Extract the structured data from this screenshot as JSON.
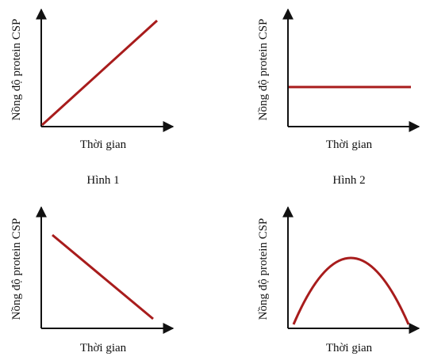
{
  "panels": [
    {
      "y_label": "Nồng độ protein CSP",
      "x_label": "Thời gian",
      "caption": "Hình 1"
    },
    {
      "y_label": "Nồng độ protein CSP",
      "x_label": "Thời gian",
      "caption": "Hình 2"
    },
    {
      "y_label": "Nồng độ protein CSP",
      "x_label": "Thời gian"
    },
    {
      "y_label": "Nồng độ protein CSP",
      "x_label": "Thời gian"
    }
  ]
}
